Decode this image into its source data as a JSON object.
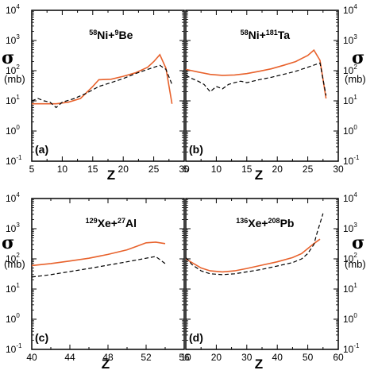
{
  "figure": {
    "y_symbol": "σ",
    "y_unit": "(mb)",
    "y_tick_base": "10",
    "y_tick_exponents": [
      "-1",
      "0",
      "1",
      "2",
      "3",
      "4"
    ],
    "x_label": "Z"
  },
  "colors": {
    "calc_line": "#e8622c",
    "exp_line": "#000000",
    "frame": "#000000"
  },
  "chart_data": [
    {
      "type": "line",
      "panel": "(a)",
      "title_parts": [
        {
          "text": "58",
          "sup": true
        },
        {
          "text": "Ni+",
          "sup": false
        },
        {
          "text": "9",
          "sup": true
        },
        {
          "text": "Be",
          "sup": false
        }
      ],
      "xlabel": "Z",
      "ylabel": "σ (mb)",
      "xlim": [
        5,
        30
      ],
      "xticks": [
        5,
        10,
        15,
        20,
        25,
        30
      ],
      "ylim": [
        0.1,
        10000
      ],
      "yscale": "log",
      "y_axis_side": "left",
      "series": [
        {
          "style": "solid",
          "color": "#e8622c",
          "x": [
            5,
            7,
            9,
            11,
            13,
            15,
            16,
            18,
            20,
            22,
            24,
            25,
            26,
            27,
            28
          ],
          "y": [
            8,
            8,
            8,
            9,
            12,
            30,
            50,
            52,
            65,
            85,
            130,
            200,
            340,
            120,
            8
          ]
        },
        {
          "style": "dashed",
          "color": "#000000",
          "x": [
            5,
            6,
            7,
            8,
            9,
            10,
            12,
            14,
            16,
            18,
            20,
            22,
            24,
            26,
            27,
            28
          ],
          "y": [
            10,
            12,
            10,
            9,
            6,
            9,
            12,
            18,
            30,
            40,
            55,
            80,
            110,
            150,
            110,
            35
          ]
        }
      ]
    },
    {
      "type": "line",
      "panel": "(b)",
      "title_parts": [
        {
          "text": "58",
          "sup": true
        },
        {
          "text": "Ni+",
          "sup": false
        },
        {
          "text": "181",
          "sup": true
        },
        {
          "text": "Ta",
          "sup": false
        }
      ],
      "xlabel": "Z",
      "ylabel": "σ (mb)",
      "xlim": [
        5,
        30
      ],
      "xticks": [
        5,
        10,
        15,
        20,
        25,
        30
      ],
      "ylim": [
        0.1,
        10000
      ],
      "yscale": "log",
      "y_axis_side": "right",
      "series": [
        {
          "style": "solid",
          "color": "#e8622c",
          "x": [
            5,
            7,
            9,
            11,
            13,
            15,
            17,
            19,
            21,
            23,
            25,
            26,
            27,
            28
          ],
          "y": [
            110,
            90,
            75,
            70,
            72,
            80,
            95,
            115,
            150,
            200,
            320,
            480,
            220,
            12
          ]
        },
        {
          "style": "dashed",
          "color": "#000000",
          "x": [
            5,
            6,
            7,
            8,
            9,
            10,
            11,
            12,
            13,
            14,
            15,
            17,
            19,
            21,
            23,
            25,
            27,
            28
          ],
          "y": [
            70,
            55,
            45,
            35,
            20,
            30,
            25,
            35,
            40,
            45,
            40,
            50,
            60,
            75,
            95,
            130,
            180,
            15
          ]
        }
      ]
    },
    {
      "type": "line",
      "panel": "(c)",
      "title_parts": [
        {
          "text": "129",
          "sup": true
        },
        {
          "text": "Xe+",
          "sup": false
        },
        {
          "text": "27",
          "sup": true
        },
        {
          "text": "Al",
          "sup": false
        }
      ],
      "xlabel": "Z",
      "ylabel": "σ (mb)",
      "xlim": [
        40,
        56
      ],
      "xticks": [
        40,
        44,
        48,
        52,
        56
      ],
      "ylim": [
        0.1,
        10000
      ],
      "yscale": "log",
      "y_axis_side": "left",
      "series": [
        {
          "style": "solid",
          "color": "#e8622c",
          "x": [
            40,
            42,
            44,
            46,
            48,
            50,
            51,
            52,
            53,
            54
          ],
          "y": [
            60,
            70,
            85,
            105,
            140,
            200,
            260,
            340,
            360,
            320
          ]
        },
        {
          "style": "dashed",
          "color": "#000000",
          "x": [
            40,
            42,
            44,
            46,
            48,
            50,
            52,
            53,
            54
          ],
          "y": [
            25,
            30,
            38,
            48,
            62,
            80,
            105,
            120,
            70
          ]
        }
      ]
    },
    {
      "type": "line",
      "panel": "(d)",
      "title_parts": [
        {
          "text": "136",
          "sup": true
        },
        {
          "text": "Xe+",
          "sup": false
        },
        {
          "text": "208",
          "sup": true
        },
        {
          "text": "Pb",
          "sup": false
        }
      ],
      "xlabel": "Z",
      "ylabel": "σ (mb)",
      "xlim": [
        10,
        60
      ],
      "xticks": [
        10,
        20,
        30,
        40,
        50,
        60
      ],
      "ylim": [
        0.1,
        10000
      ],
      "yscale": "log",
      "y_axis_side": "right",
      "series": [
        {
          "style": "solid",
          "color": "#e8622c",
          "x": [
            10,
            12,
            15,
            18,
            22,
            26,
            30,
            35,
            40,
            45,
            48,
            50,
            52,
            54
          ],
          "y": [
            100,
            75,
            50,
            40,
            37,
            40,
            48,
            62,
            80,
            110,
            150,
            220,
            320,
            450
          ]
        },
        {
          "style": "dashed",
          "color": "#000000",
          "x": [
            10,
            12,
            15,
            18,
            22,
            26,
            30,
            35,
            40,
            45,
            48,
            50,
            52,
            53,
            54,
            55
          ],
          "y": [
            110,
            65,
            40,
            32,
            30,
            32,
            37,
            45,
            58,
            75,
            100,
            150,
            300,
            700,
            1500,
            3200
          ]
        }
      ]
    }
  ]
}
